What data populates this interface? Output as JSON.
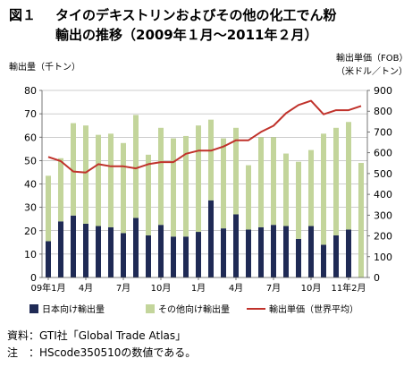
{
  "figure": {
    "label": "図１",
    "title_line1": "タイのデキストリンおよびその他の化工でん粉",
    "title_line2": "輸出の推移（2009年１月～2011年２月）"
  },
  "chart_data": {
    "type": "bar",
    "stacked": true,
    "ylabel_left": "輸出量（千トン）",
    "ylabel_right_line1": "輸出単価（FOB）",
    "ylabel_right_line2": "（米ドル／トン）",
    "ylim_left": [
      0,
      80
    ],
    "yticks_left": [
      0,
      10,
      20,
      30,
      40,
      50,
      60,
      70,
      80
    ],
    "ylim_right": [
      0,
      900
    ],
    "yticks_right": [
      0,
      100,
      200,
      300,
      400,
      500,
      600,
      700,
      800,
      900
    ],
    "x_tick_labels": [
      {
        "index": 0,
        "label": "09年1月"
      },
      {
        "index": 3,
        "label": "4月"
      },
      {
        "index": 6,
        "label": "7月"
      },
      {
        "index": 9,
        "label": "10月"
      },
      {
        "index": 12,
        "label": "1月"
      },
      {
        "index": 15,
        "label": "4月"
      },
      {
        "index": 18,
        "label": "7月"
      },
      {
        "index": 21,
        "label": "10月"
      },
      {
        "index": 24,
        "label": "11年2月"
      }
    ],
    "categories": [
      "2009-01",
      "2009-02",
      "2009-03",
      "2009-04",
      "2009-05",
      "2009-06",
      "2009-07",
      "2009-08",
      "2009-09",
      "2009-10",
      "2009-11",
      "2009-12",
      "2010-01",
      "2010-02",
      "2010-03",
      "2010-04",
      "2010-05",
      "2010-06",
      "2010-07",
      "2010-08",
      "2010-09",
      "2010-10",
      "2010-11",
      "2010-12",
      "2011-01",
      "2011-02"
    ],
    "series": [
      {
        "name": "日本向け輸出量",
        "kind": "bar",
        "axis": "left",
        "color": "#1f2a55",
        "values": [
          15.5,
          24,
          26.5,
          23,
          22,
          21.5,
          19,
          25.5,
          18,
          22.5,
          17.5,
          17.5,
          19.5,
          33,
          21,
          27,
          20.5,
          21.5,
          22.5,
          22,
          16.5,
          22,
          14,
          18,
          20.5,
          0
        ]
      },
      {
        "name": "その他向け輸出量",
        "kind": "bar",
        "axis": "left",
        "color": "#c3d59b",
        "values": [
          28,
          27,
          39.5,
          42,
          39,
          40,
          38.5,
          44,
          34.5,
          41.5,
          42,
          43,
          45.5,
          34.5,
          38.5,
          37,
          27.5,
          38.5,
          37.5,
          31,
          33,
          32.5,
          47.5,
          46,
          46,
          49
        ]
      },
      {
        "name": "輸出単価（世界平均）",
        "kind": "line",
        "axis": "right",
        "color": "#c0322b",
        "values": [
          580,
          560,
          510,
          505,
          545,
          535,
          535,
          525,
          545,
          555,
          555,
          595,
          610,
          610,
          630,
          660,
          660,
          700,
          730,
          790,
          830,
          850,
          785,
          805,
          805,
          825
        ]
      }
    ],
    "legend_position": "bottom",
    "grid": "horizontal"
  },
  "notes": {
    "source": "資料：GTI社「Global Trade Atlas」",
    "note": "注　：HScode350510の数値である。"
  }
}
